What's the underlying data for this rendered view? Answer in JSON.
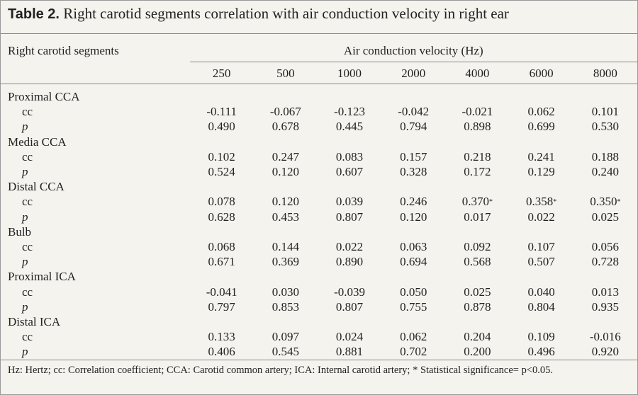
{
  "table": {
    "label": "Table 2.",
    "title": "Right carotid segments correlation with air conduction velocity in right ear",
    "row_header": "Right carotid segments",
    "column_group": "Air conduction velocity (Hz)",
    "columns": [
      "250",
      "500",
      "1000",
      "2000",
      "4000",
      "6000",
      "8000"
    ],
    "groups": [
      {
        "name": "Proximal CCA",
        "rows": [
          {
            "label": "cc",
            "cells": [
              "-0.111",
              "-0.067",
              "-0.123",
              "-0.042",
              "-0.021",
              "0.062",
              "0.101"
            ]
          },
          {
            "label": "p",
            "cells": [
              "0.490",
              "0.678",
              "0.445",
              "0.794",
              "0.898",
              "0.699",
              "0.530"
            ]
          }
        ]
      },
      {
        "name": "Media CCA",
        "rows": [
          {
            "label": "cc",
            "cells": [
              "0.102",
              "0.247",
              "0.083",
              "0.157",
              "0.218",
              "0.241",
              "0.188"
            ]
          },
          {
            "label": "p",
            "cells": [
              "0.524",
              "0.120",
              "0.607",
              "0.328",
              "0.172",
              "0.129",
              "0.240"
            ]
          }
        ]
      },
      {
        "name": "Distal CCA",
        "rows": [
          {
            "label": "cc",
            "cells": [
              "0.078",
              "0.120",
              "0.039",
              "0.246",
              {
                "value": "0.370",
                "note": "*"
              },
              {
                "value": "0.358",
                "note": "*"
              },
              {
                "value": "0.350",
                "note": "*"
              }
            ]
          },
          {
            "label": "p",
            "cells": [
              "0.628",
              "0.453",
              "0.807",
              "0.120",
              "0.017",
              "0.022",
              "0.025"
            ]
          }
        ]
      },
      {
        "name": "Bulb",
        "rows": [
          {
            "label": "cc",
            "cells": [
              "0.068",
              "0.144",
              "0.022",
              "0.063",
              "0.092",
              "0.107",
              "0.056"
            ]
          },
          {
            "label": "p",
            "cells": [
              "0.671",
              "0.369",
              "0.890",
              "0.694",
              "0.568",
              "0.507",
              "0.728"
            ]
          }
        ]
      },
      {
        "name": "Proximal ICA",
        "rows": [
          {
            "label": "cc",
            "cells": [
              "-0.041",
              "0.030",
              "-0.039",
              "0.050",
              "0.025",
              "0.040",
              "0.013"
            ]
          },
          {
            "label": "p",
            "cells": [
              "0.797",
              "0.853",
              "0.807",
              "0.755",
              "0.878",
              "0.804",
              "0.935"
            ]
          }
        ]
      },
      {
        "name": "Distal ICA",
        "rows": [
          {
            "label": "cc",
            "cells": [
              "0.133",
              "0.097",
              "0.024",
              "0.062",
              "0.204",
              "0.109",
              "-0.016"
            ]
          },
          {
            "label": "p",
            "cells": [
              "0.406",
              "0.545",
              "0.881",
              "0.702",
              "0.200",
              "0.496",
              "0.920"
            ]
          }
        ]
      }
    ],
    "footnote": "Hz: Hertz; cc: Correlation coefficient; CCA: Carotid common artery; ICA: Internal carotid artery; * Statistical significance= p<0.05."
  }
}
